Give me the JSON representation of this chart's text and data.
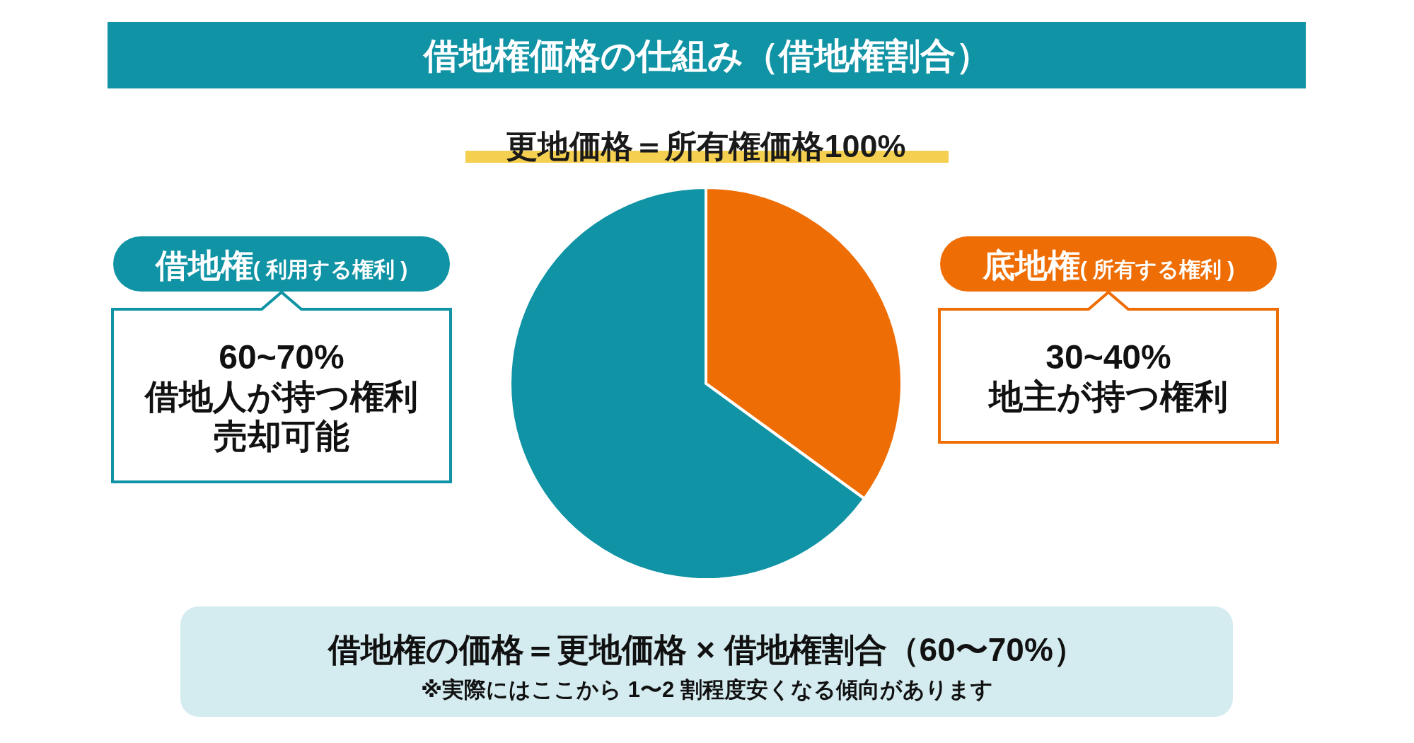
{
  "chart_data": {
    "type": "pie",
    "title": "借地権価格の仕組み（借地権割合）",
    "subtitle": "更地価格＝所有権価格100%",
    "categories": [
      "底地権( 所有する権利 )",
      "借地権( 利用する権利 )"
    ],
    "values": [
      35,
      65
    ],
    "colors": [
      "#ee6d04",
      "#1093a5"
    ],
    "annotations": [
      "30~40%",
      "地主が持つ権利",
      "60~70%",
      "借地人が持つ権利",
      "売却可能",
      "借地権の価格＝更地価格 × 借地権割合（60〜70%）",
      "※実際にはここから 1〜2 割程度安くなる傾向があります"
    ]
  }
}
